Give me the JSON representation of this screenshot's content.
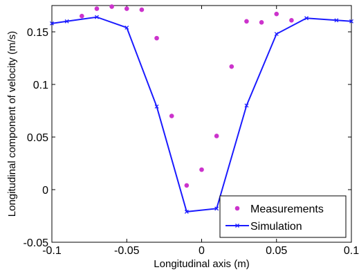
{
  "chart_data": {
    "type": "line",
    "xlabel": "Longitudinal axis (m)",
    "ylabel": "Longitudinal component of velocity (m/s)",
    "xlim": [
      -0.1,
      0.1
    ],
    "ylim": [
      -0.05,
      0.175
    ],
    "xticks": [
      "-0.1",
      "-0.05",
      "0",
      "0.05",
      "0.1"
    ],
    "yticks": [
      "-0.05",
      "0",
      "0.05",
      "0.1",
      "0.15"
    ],
    "xtick_values": [
      -0.1,
      -0.05,
      0,
      0.05,
      0.1
    ],
    "ytick_values": [
      -0.05,
      0,
      0.05,
      0.1,
      0.15
    ],
    "grid": false,
    "legend_position": "bottom-right",
    "series": [
      {
        "name": "Measurements",
        "style": "markers",
        "color": "#cc33cc",
        "x": [
          -0.08,
          -0.07,
          -0.06,
          -0.05,
          -0.04,
          -0.03,
          -0.02,
          -0.01,
          0.0,
          0.01,
          0.02,
          0.03,
          0.04,
          0.05,
          0.06
        ],
        "y": [
          0.165,
          0.172,
          0.174,
          0.172,
          0.171,
          0.144,
          0.07,
          0.004,
          0.019,
          0.051,
          0.117,
          0.16,
          0.159,
          0.167,
          0.161
        ]
      },
      {
        "name": "Simulation",
        "style": "line-markers",
        "color": "#1a1aff",
        "x": [
          -0.1,
          -0.09,
          -0.07,
          -0.05,
          -0.03,
          -0.01,
          0.01,
          0.03,
          0.05,
          0.07,
          0.09,
          0.1
        ],
        "y": [
          0.158,
          0.16,
          0.164,
          0.154,
          0.079,
          -0.021,
          -0.018,
          0.08,
          0.148,
          0.163,
          0.161,
          0.16
        ]
      }
    ]
  }
}
